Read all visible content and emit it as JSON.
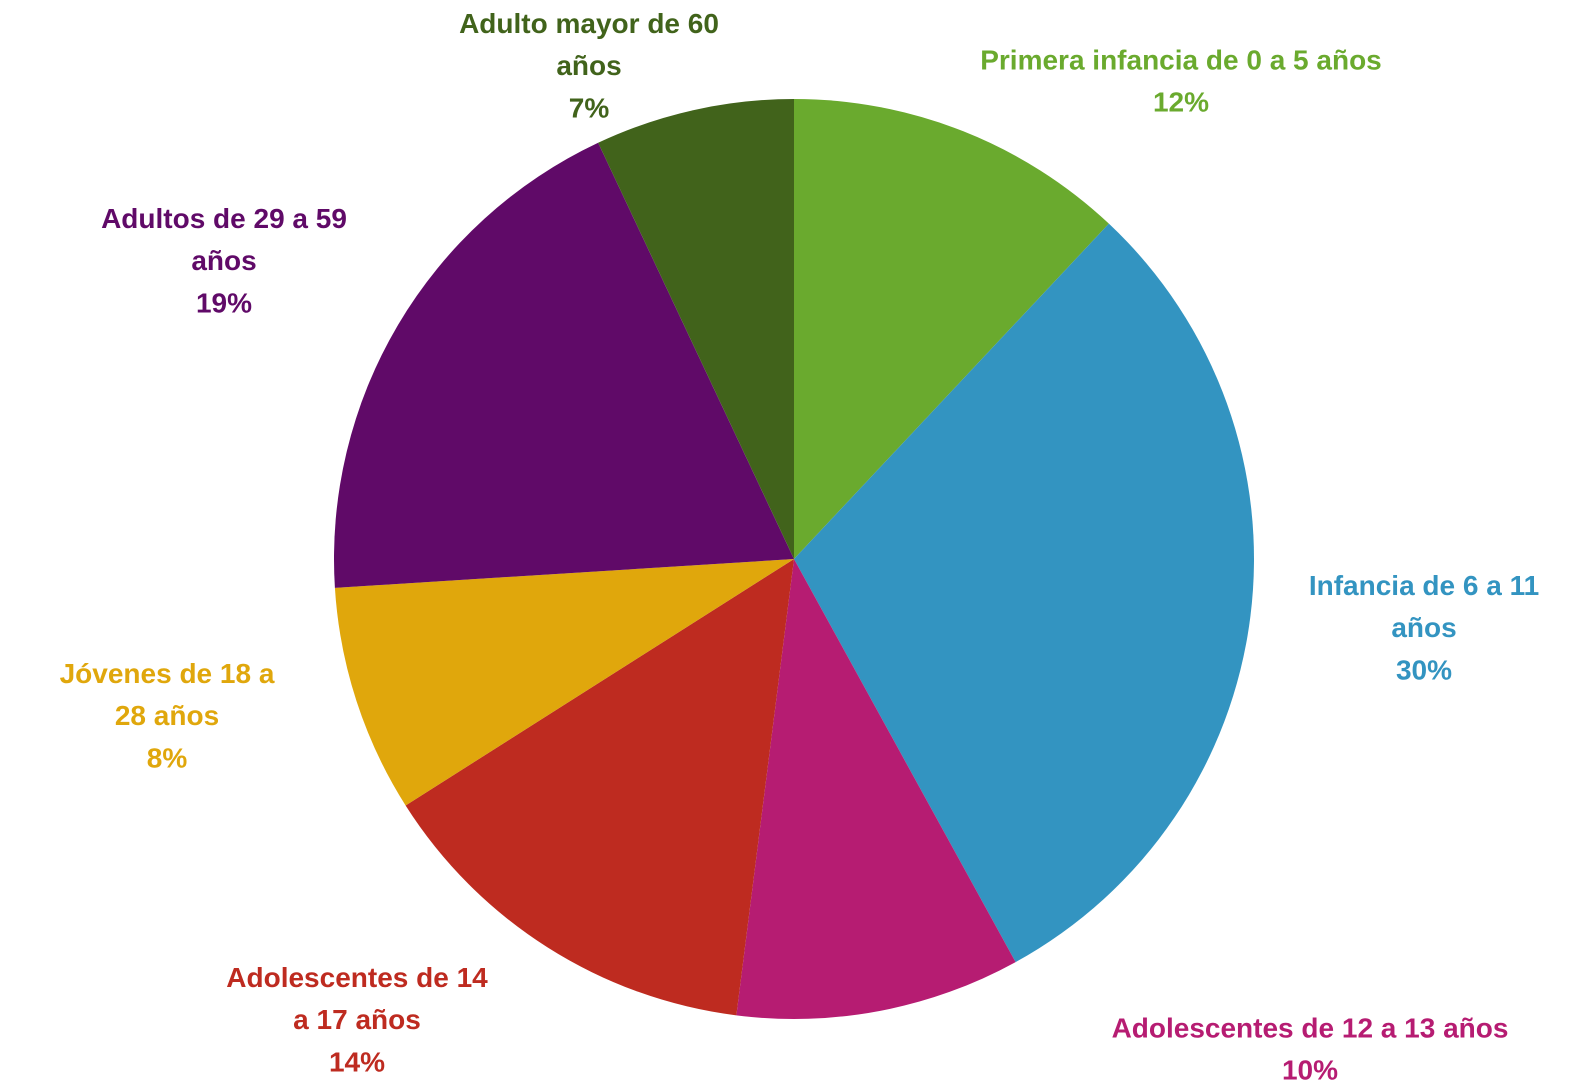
{
  "chart_data": {
    "type": "pie",
    "categories": [
      "Primera infancia de 0 a 5 años",
      "Infancia de 6 a 11 años",
      "Adolescentes de 12 a 13 años",
      "Adolescentes de 14 a 17 años",
      "Jóvenes de 18 a 28 años",
      "Adultos de 29 a 59 años",
      "Adulto mayor de 60 años"
    ],
    "values": [
      12,
      30,
      10,
      14,
      8,
      19,
      7
    ],
    "value_labels": [
      "12%",
      "30%",
      "10%",
      "14%",
      "8%",
      "19%",
      "7%"
    ],
    "colors": [
      "#6aaa2e",
      "#3394c1",
      "#b61c72",
      "#be2b20",
      "#e0a70c",
      "#600a68",
      "#41631b"
    ]
  }
}
